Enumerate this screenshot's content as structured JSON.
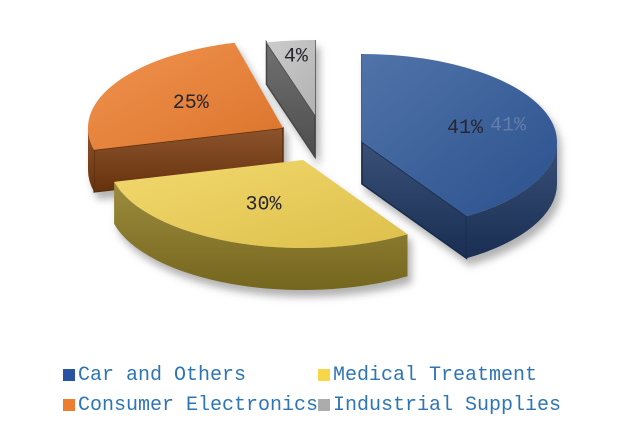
{
  "page": {
    "background": "#FFFFFF"
  },
  "chart_data": {
    "type": "pie",
    "style": "3d-exploded",
    "title": "",
    "direction": "clockwise",
    "start_angle_deg": 0,
    "total": 100,
    "legend_position": "bottom",
    "slices": [
      {
        "label": "Car and Others",
        "value": 41,
        "data_label": "41%",
        "top_color": "#2F5899",
        "side_color": "#1F3864",
        "legend_color": "#2A52A2"
      },
      {
        "label": "Medical Treatment",
        "value": 30,
        "data_label": "30%",
        "top_color": "#F0D152",
        "side_color": "#8F7C24",
        "legend_color": "#F7D64A"
      },
      {
        "label": "Consumer Electronics",
        "value": 25,
        "data_label": "25%",
        "top_color": "#EE7E2F",
        "side_color": "#7C3D10",
        "legend_color": "#ED7D31"
      },
      {
        "label": "Industrial Supplies",
        "value": 4,
        "data_label": "4%",
        "top_color": "#C2C2C2",
        "side_color": "#5E5E5E",
        "legend_color": "#ACACAC"
      }
    ],
    "data_label_color": "#26262E",
    "ghost_label": {
      "text": "41%",
      "color": "#8296BC"
    },
    "legend": {
      "text_color": "#2E75B6",
      "items_order": [
        "Car and Others",
        "Medical Treatment",
        "Consumer Electronics",
        "Industrial Supplies"
      ]
    }
  }
}
